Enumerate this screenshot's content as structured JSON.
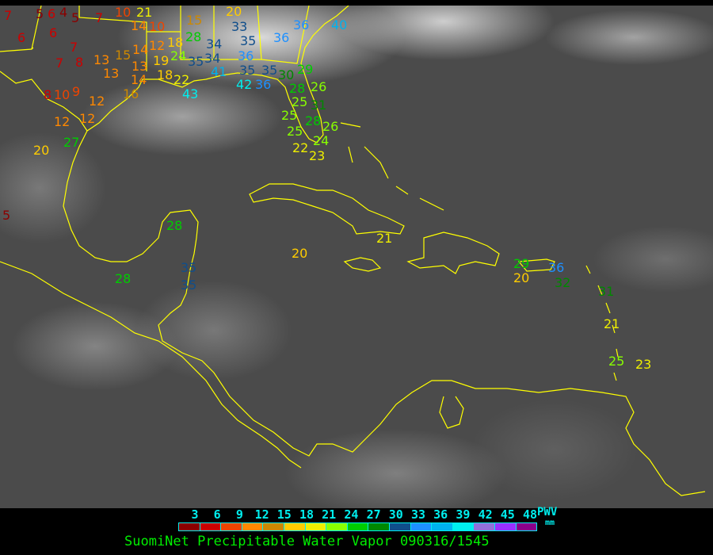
{
  "title": "SuomiNet Precipitable Water Vapor 090316/1545",
  "legend": {
    "ticks": [
      "3",
      "6",
      "9",
      "12",
      "15",
      "18",
      "21",
      "24",
      "27",
      "30",
      "33",
      "36",
      "39",
      "42",
      "45",
      "48"
    ],
    "unit_label": "PWV",
    "unit": "mm",
    "colors": [
      "#8b0000",
      "#cc0000",
      "#ee4400",
      "#ff8800",
      "#cc8800",
      "#ffcc00",
      "#eeee00",
      "#88ff00",
      "#00cc00",
      "#008800",
      "#104e8b",
      "#1e90ff",
      "#00b2ee",
      "#00eeee",
      "#9370db",
      "#9b30ff",
      "#8b008b"
    ]
  },
  "coastline_color": "#ffff00",
  "stations": [
    "7",
    "5",
    "6",
    "4",
    "5",
    "7",
    "10",
    "21",
    "14",
    "10",
    "15",
    "20",
    "6",
    "6",
    "7",
    "8",
    "7",
    "13",
    "15",
    "14",
    "13",
    "12",
    "18",
    "19",
    "24",
    "28",
    "18",
    "22",
    "13",
    "14",
    "16",
    "8",
    "10",
    "9",
    "12",
    "12",
    "12",
    "27",
    "20",
    "5",
    "33",
    "34",
    "35",
    "36",
    "35",
    "34",
    "36",
    "40",
    "36",
    "35",
    "41",
    "42",
    "36",
    "35",
    "30",
    "43",
    "29",
    "28",
    "26",
    "25",
    "31",
    "25",
    "28",
    "26",
    "25",
    "24",
    "23",
    "22",
    "28",
    "28",
    "35",
    "35",
    "20",
    "21",
    "29",
    "20",
    "36",
    "32",
    "31",
    "21",
    "25",
    "23"
  ]
}
